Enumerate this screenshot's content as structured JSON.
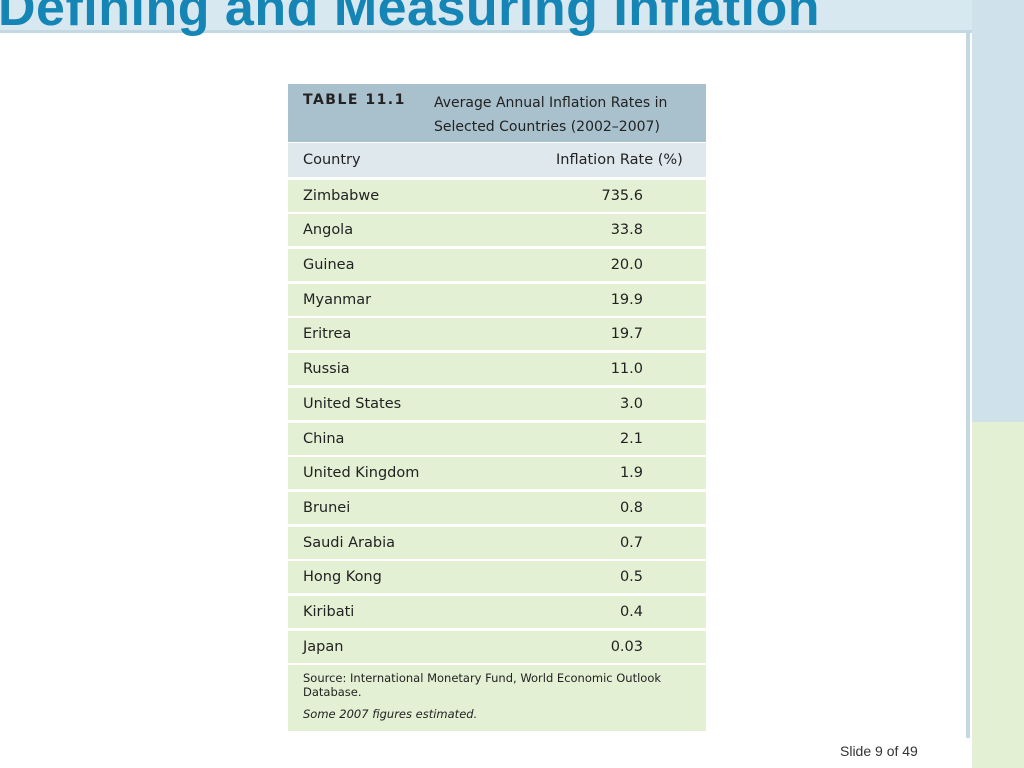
{
  "slide": {
    "title": "Defining and Measuring Inflation",
    "number_label": "Slide 9 of 49"
  },
  "table": {
    "tag": "TABLE 11.1",
    "caption": "Average Annual Inflation Rates in Selected Countries (2002–2007)",
    "headers": [
      "Country",
      "Inflation Rate (%)"
    ],
    "rows": [
      {
        "country": "Zimbabwe",
        "rate": "735.6"
      },
      {
        "country": "Angola",
        "rate": "33.8"
      },
      {
        "country": "Guinea",
        "rate": "20.0"
      },
      {
        "country": "Myanmar",
        "rate": "19.9"
      },
      {
        "country": "Eritrea",
        "rate": "19.7"
      },
      {
        "country": "Russia",
        "rate": "11.0"
      },
      {
        "country": "United States",
        "rate": "3.0"
      },
      {
        "country": "China",
        "rate": "2.1"
      },
      {
        "country": "United Kingdom",
        "rate": "1.9"
      },
      {
        "country": "Brunei",
        "rate": "0.8"
      },
      {
        "country": "Saudi Arabia",
        "rate": "0.7"
      },
      {
        "country": "Hong Kong",
        "rate": "0.5"
      },
      {
        "country": "Kiribati",
        "rate": "0.4"
      },
      {
        "country": "Japan",
        "rate": "0.03"
      }
    ],
    "source": "Source: International Monetary Fund, World Economic Outlook Database.",
    "note": "Some 2007 figures estimated."
  },
  "colors": {
    "title": "#1585b5",
    "caption_bg": "#a9c1cd",
    "header_bg": "#dfe8ec",
    "row_bg": "#e4f0d4"
  }
}
